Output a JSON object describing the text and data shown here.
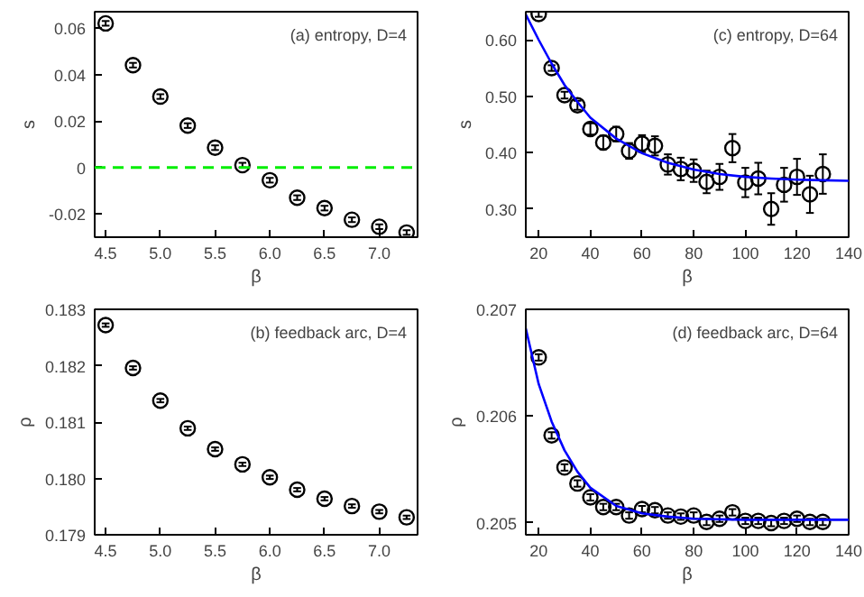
{
  "chart_data": [
    {
      "type": "scatter",
      "xlabel": "β",
      "ylabel": "s",
      "annotations": [
        "(a) entropy, D=4"
      ],
      "grid": false,
      "xlim": [
        4.4,
        7.35
      ],
      "xticks": [
        4.5,
        {
          "value": 5,
          "label": "5.0"
        },
        5.5,
        {
          "value": 6,
          "label": "6.0"
        },
        6.5,
        {
          "value": 7,
          "label": "7.0"
        }
      ],
      "ylim": [
        -0.03,
        0.067
      ],
      "yticks": [
        -0.02,
        0,
        0.02,
        0.04,
        0.06
      ],
      "ref_lines": [
        {
          "axis": "y",
          "value": 0,
          "color": "#00ee00",
          "line_style": "dashed"
        }
      ],
      "series": [
        {
          "color": "#000000",
          "marker": "circle",
          "x": [
            4.5,
            4.75,
            5.0,
            5.25,
            5.5,
            5.75,
            6.0,
            6.25,
            6.5,
            6.75,
            7.0,
            7.25
          ],
          "values": [
            0.062,
            0.044,
            0.0305,
            0.018,
            0.0085,
            0.001,
            -0.0055,
            -0.013,
            -0.0175,
            -0.0225,
            -0.0255,
            -0.028
          ],
          "errors": [
            0.001,
            0.001,
            0.001,
            0.001,
            0.001,
            0.001,
            0.001,
            0.001,
            0.001,
            0.001,
            0.001,
            0.001
          ]
        }
      ]
    },
    {
      "type": "scatter",
      "xlabel": "β",
      "ylabel": "s",
      "annotations": [
        "(c) entropy, D=64"
      ],
      "grid": false,
      "xlim": [
        15,
        140
      ],
      "xticks": [
        20,
        40,
        60,
        80,
        100,
        120,
        140
      ],
      "ylim": [
        0.25,
        0.65
      ],
      "yticks": [
        {
          "value": 0.3,
          "label": "0.30"
        },
        {
          "value": 0.4,
          "label": "0.40"
        },
        {
          "value": 0.5,
          "label": "0.50"
        },
        {
          "value": 0.6,
          "label": "0.60"
        }
      ],
      "series": [
        {
          "color": "#000000",
          "marker": "circle",
          "x": [
            20,
            25,
            30,
            35,
            40,
            45,
            50,
            55,
            60,
            65,
            70,
            75,
            80,
            85,
            90,
            95,
            100,
            105,
            110,
            115,
            120,
            125,
            130
          ],
          "values": [
            0.646,
            0.55,
            0.502,
            0.484,
            0.442,
            0.418,
            0.433,
            0.403,
            0.416,
            0.412,
            0.379,
            0.371,
            0.368,
            0.348,
            0.357,
            0.408,
            0.347,
            0.354,
            0.3,
            0.343,
            0.357,
            0.326,
            0.362
          ],
          "errors": [
            0.005,
            0.005,
            0.006,
            0.008,
            0.01,
            0.012,
            0.013,
            0.014,
            0.015,
            0.017,
            0.018,
            0.02,
            0.02,
            0.02,
            0.023,
            0.025,
            0.026,
            0.028,
            0.028,
            0.03,
            0.032,
            0.033,
            0.035
          ]
        },
        {
          "type": "line",
          "color": "#0000ff",
          "x": [
            15,
            20,
            25,
            30,
            35,
            40,
            50,
            60,
            70,
            80,
            90,
            100,
            110,
            120,
            130,
            140
          ],
          "values": [
            0.645,
            0.6,
            0.558,
            0.52,
            0.49,
            0.462,
            0.425,
            0.399,
            0.382,
            0.37,
            0.362,
            0.357,
            0.354,
            0.352,
            0.351,
            0.35
          ]
        }
      ]
    },
    {
      "type": "scatter",
      "xlabel": "β",
      "ylabel": "ρ",
      "annotations": [
        "(b) feedback arc, D=4"
      ],
      "grid": false,
      "xlim": [
        4.4,
        7.35
      ],
      "xticks": [
        4.5,
        {
          "value": 5,
          "label": "5.0"
        },
        5.5,
        {
          "value": 6,
          "label": "6.0"
        },
        6.5,
        {
          "value": 7,
          "label": "7.0"
        }
      ],
      "ylim": [
        0.179,
        0.183
      ],
      "yticks": [
        0.179,
        {
          "value": 0.18,
          "label": "0.180"
        },
        0.181,
        0.182,
        0.183
      ],
      "series": [
        {
          "color": "#000000",
          "marker": "circle",
          "x": [
            4.5,
            4.75,
            5.0,
            5.25,
            5.5,
            5.75,
            6.0,
            6.25,
            6.5,
            6.75,
            7.0,
            7.25
          ],
          "values": [
            0.18272,
            0.18196,
            0.18138,
            0.18089,
            0.18052,
            0.18025,
            0.18002,
            0.1798,
            0.17964,
            0.17951,
            0.17941,
            0.17931
          ],
          "errors": [
            3e-05,
            3e-05,
            3e-05,
            3e-05,
            3e-05,
            3e-05,
            3e-05,
            3e-05,
            3e-05,
            3e-05,
            3e-05,
            3e-05
          ]
        }
      ]
    },
    {
      "type": "scatter",
      "xlabel": "β",
      "ylabel": "ρ",
      "annotations": [
        "(d) feedback arc, D=64"
      ],
      "grid": false,
      "xlim": [
        15,
        140
      ],
      "xticks": [
        20,
        40,
        60,
        80,
        100,
        120,
        140
      ],
      "ylim": [
        0.20489,
        0.207
      ],
      "yticks": [
        0.205,
        0.206,
        0.207
      ],
      "series": [
        {
          "color": "#000000",
          "marker": "circle",
          "x": [
            20,
            25,
            30,
            35,
            40,
            45,
            50,
            55,
            60,
            65,
            70,
            75,
            80,
            85,
            90,
            95,
            100,
            105,
            110,
            115,
            120,
            125,
            130
          ],
          "values": [
            0.20655,
            0.20582,
            0.20552,
            0.20537,
            0.20524,
            0.20515,
            0.20515,
            0.20507,
            0.20513,
            0.20512,
            0.20507,
            0.20506,
            0.20507,
            0.20501,
            0.20504,
            0.2051,
            0.20502,
            0.20502,
            0.205,
            0.20502,
            0.20504,
            0.20501,
            0.20501
          ],
          "errors": [
            3e-05,
            3e-05,
            3e-05,
            3e-05,
            3e-05,
            3e-05,
            3e-05,
            3e-05,
            3e-05,
            3e-05,
            3e-05,
            3e-05,
            3e-05,
            3e-05,
            3e-05,
            3e-05,
            3e-05,
            3e-05,
            3e-05,
            3e-05,
            3e-05,
            3e-05,
            3e-05
          ]
        },
        {
          "type": "line",
          "color": "#0000ff",
          "x": [
            15,
            20,
            25,
            30,
            35,
            40,
            50,
            60,
            70,
            80,
            100,
            140
          ],
          "values": [
            0.20682,
            0.2063,
            0.20595,
            0.20568,
            0.20548,
            0.20533,
            0.20516,
            0.20509,
            0.20506,
            0.20504,
            0.20503,
            0.20503
          ]
        }
      ]
    }
  ]
}
